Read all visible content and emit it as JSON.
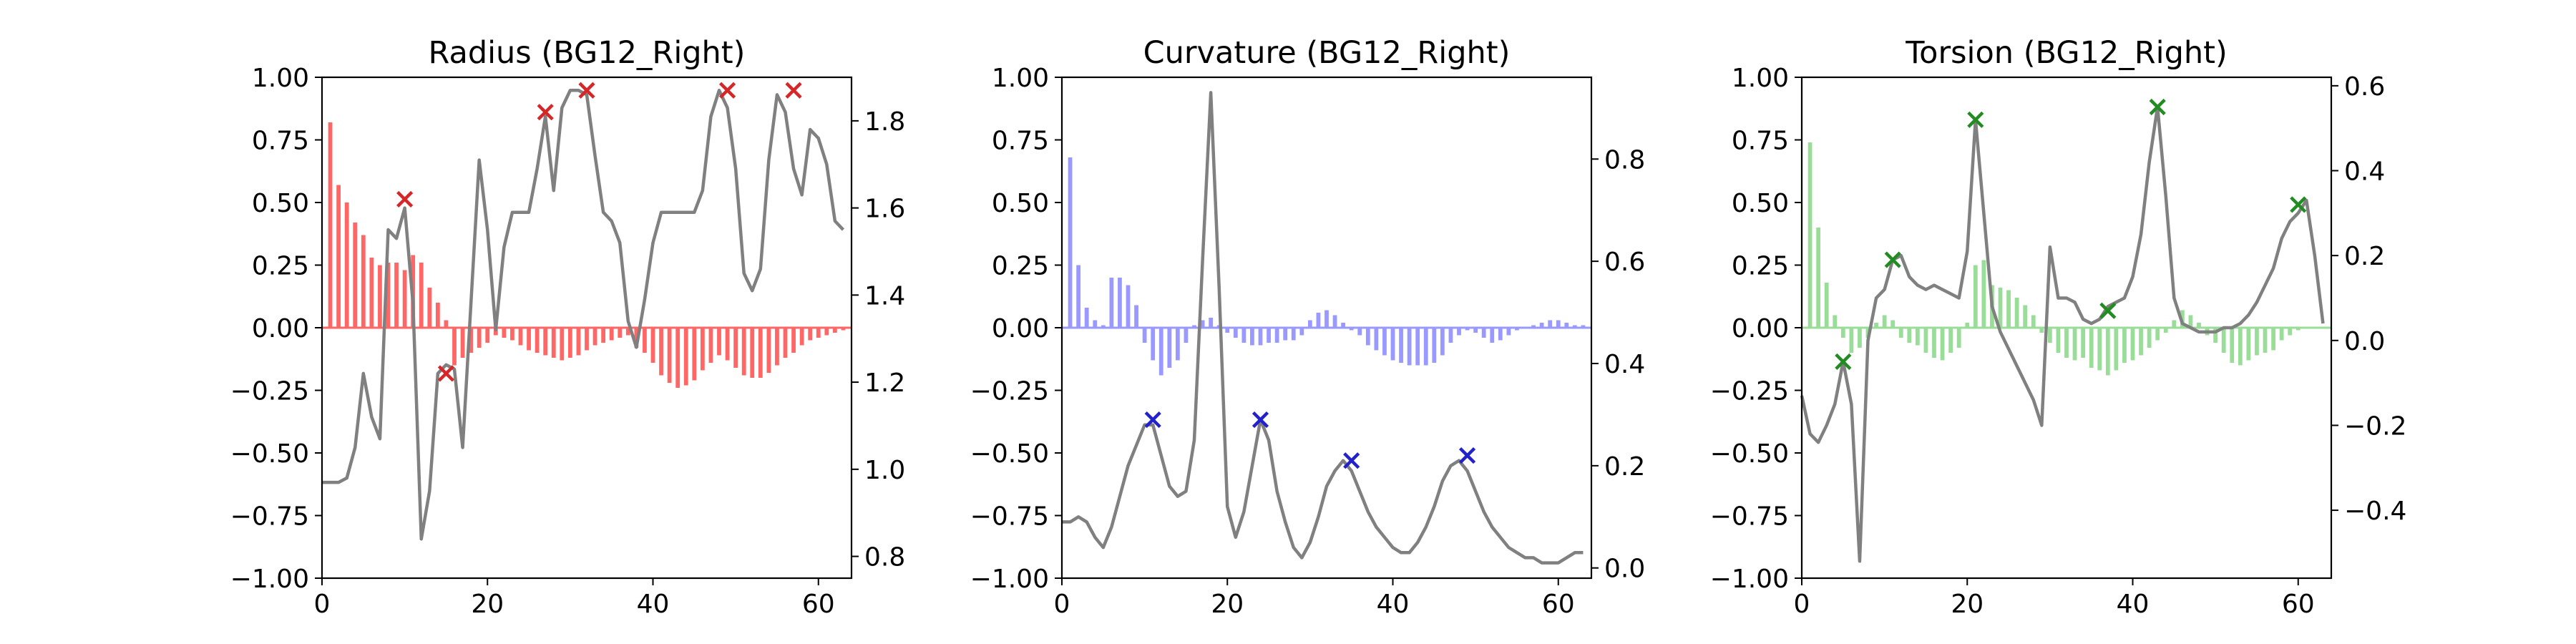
{
  "chart_data": [
    {
      "type": "bar+line",
      "title": "Radius (BG12_Right)",
      "bar_color": "#ff6666",
      "line_color": "#808080",
      "marker_color": "#d62728",
      "xlim": [
        0,
        64
      ],
      "ylim_left": [
        -1.0,
        1.0
      ],
      "ylim_right": [
        0.75,
        1.9
      ],
      "x_ticks": [
        "0",
        "20",
        "40",
        "60"
      ],
      "left_ticks": [
        "1.00",
        "0.75",
        "0.50",
        "0.25",
        "0.00",
        "−0.25",
        "−0.50",
        "−0.75",
        "−1.00"
      ],
      "right_ticks": [
        "1.8",
        "1.6",
        "1.4",
        "1.2",
        "1.0",
        "0.8"
      ],
      "bar_x": [
        1,
        2,
        3,
        4,
        5,
        6,
        7,
        8,
        9,
        10,
        11,
        12,
        13,
        14,
        15,
        16,
        17,
        18,
        19,
        20,
        21,
        22,
        23,
        24,
        25,
        26,
        27,
        28,
        29,
        30,
        31,
        32,
        33,
        34,
        35,
        36,
        37,
        38,
        39,
        40,
        41,
        42,
        43,
        44,
        45,
        46,
        47,
        48,
        49,
        50,
        51,
        52,
        53,
        54,
        55,
        56,
        57,
        58,
        59,
        60,
        61,
        62,
        63
      ],
      "bar_values": [
        0.82,
        0.57,
        0.5,
        0.42,
        0.37,
        0.28,
        0.25,
        0.26,
        0.26,
        0.23,
        0.29,
        0.26,
        0.16,
        0.1,
        0.03,
        -0.15,
        -0.12,
        -0.1,
        -0.08,
        -0.06,
        -0.03,
        -0.04,
        -0.05,
        -0.07,
        -0.09,
        -0.1,
        -0.11,
        -0.12,
        -0.13,
        -0.12,
        -0.11,
        -0.09,
        -0.07,
        -0.06,
        -0.05,
        -0.04,
        -0.03,
        -0.08,
        -0.1,
        -0.14,
        -0.19,
        -0.22,
        -0.24,
        -0.23,
        -0.21,
        -0.17,
        -0.14,
        -0.11,
        -0.13,
        -0.16,
        -0.19,
        -0.2,
        -0.2,
        -0.18,
        -0.15,
        -0.12,
        -0.1,
        -0.07,
        -0.05,
        -0.04,
        -0.03,
        -0.02,
        -0.01
      ],
      "line_x": [
        0,
        1,
        2,
        3,
        4,
        5,
        6,
        7,
        8,
        9,
        10,
        11,
        12,
        13,
        14,
        15,
        16,
        17,
        18,
        19,
        20,
        21,
        22,
        23,
        24,
        25,
        26,
        27,
        28,
        29,
        30,
        31,
        32,
        33,
        34,
        35,
        36,
        37,
        38,
        39,
        40,
        41,
        42,
        43,
        44,
        45,
        46,
        47,
        48,
        49,
        50,
        51,
        52,
        53,
        54,
        55,
        56,
        57,
        58,
        59,
        60,
        61,
        62,
        63
      ],
      "line_values": [
        0.97,
        0.97,
        0.97,
        0.98,
        1.05,
        1.22,
        1.12,
        1.07,
        1.55,
        1.53,
        1.6,
        1.38,
        0.84,
        0.95,
        1.22,
        1.24,
        1.23,
        1.05,
        1.38,
        1.71,
        1.55,
        1.32,
        1.51,
        1.59,
        1.59,
        1.59,
        1.69,
        1.81,
        1.64,
        1.83,
        1.87,
        1.87,
        1.86,
        1.72,
        1.59,
        1.57,
        1.52,
        1.34,
        1.28,
        1.39,
        1.52,
        1.59,
        1.59,
        1.59,
        1.59,
        1.59,
        1.64,
        1.81,
        1.87,
        1.83,
        1.69,
        1.45,
        1.41,
        1.46,
        1.71,
        1.86,
        1.82,
        1.69,
        1.63,
        1.78,
        1.76,
        1.7,
        1.57,
        1.55
      ],
      "marker_x": [
        10,
        15,
        27,
        32,
        49,
        57
      ],
      "marker_y": [
        1.62,
        1.22,
        1.82,
        1.87,
        1.87,
        1.87
      ]
    },
    {
      "type": "bar+line",
      "title": "Curvature (BG12_Right)",
      "bar_color": "#9999ff",
      "line_color": "#808080",
      "marker_color": "#2222cc",
      "xlim": [
        0,
        64
      ],
      "ylim_left": [
        -1.0,
        1.0
      ],
      "ylim_right": [
        -0.02,
        0.96
      ],
      "x_ticks": [
        "0",
        "20",
        "40",
        "60"
      ],
      "left_ticks": [
        "1.00",
        "0.75",
        "0.50",
        "0.25",
        "0.00",
        "−0.25",
        "−0.50",
        "−0.75",
        "−1.00"
      ],
      "right_ticks": [
        "0.8",
        "0.6",
        "0.4",
        "0.2",
        "0.0"
      ],
      "bar_x": [
        1,
        2,
        3,
        4,
        5,
        6,
        7,
        8,
        9,
        10,
        11,
        12,
        13,
        14,
        15,
        16,
        17,
        18,
        19,
        20,
        21,
        22,
        23,
        24,
        25,
        26,
        27,
        28,
        29,
        30,
        31,
        32,
        33,
        34,
        35,
        36,
        37,
        38,
        39,
        40,
        41,
        42,
        43,
        44,
        45,
        46,
        47,
        48,
        49,
        50,
        51,
        52,
        53,
        54,
        55,
        56,
        57,
        58,
        59,
        60,
        61,
        62,
        63
      ],
      "bar_values": [
        0.68,
        0.25,
        0.08,
        0.03,
        0.01,
        0.2,
        0.2,
        0.17,
        0.09,
        -0.06,
        -0.13,
        -0.19,
        -0.16,
        -0.13,
        -0.06,
        0.01,
        0.03,
        0.04,
        0.01,
        -0.02,
        -0.04,
        -0.06,
        -0.07,
        -0.07,
        -0.06,
        -0.06,
        -0.05,
        -0.05,
        -0.03,
        0.03,
        0.06,
        0.07,
        0.05,
        0.02,
        -0.01,
        -0.03,
        -0.07,
        -0.09,
        -0.11,
        -0.13,
        -0.14,
        -0.15,
        -0.15,
        -0.15,
        -0.14,
        -0.11,
        -0.06,
        -0.03,
        -0.01,
        -0.02,
        -0.04,
        -0.06,
        -0.05,
        -0.03,
        -0.01,
        0.0,
        0.01,
        0.02,
        0.03,
        0.03,
        0.02,
        0.01,
        0.01
      ],
      "line_x": [
        0,
        1,
        2,
        3,
        4,
        5,
        6,
        7,
        8,
        9,
        10,
        11,
        12,
        13,
        14,
        15,
        16,
        17,
        18,
        19,
        20,
        21,
        22,
        23,
        24,
        25,
        26,
        27,
        28,
        29,
        30,
        31,
        32,
        33,
        34,
        35,
        36,
        37,
        38,
        39,
        40,
        41,
        42,
        43,
        44,
        45,
        46,
        47,
        48,
        49,
        50,
        51,
        52,
        53,
        54,
        55,
        56,
        57,
        58,
        59,
        60,
        61,
        62,
        63
      ],
      "line_values": [
        0.09,
        0.09,
        0.1,
        0.09,
        0.06,
        0.04,
        0.08,
        0.14,
        0.2,
        0.24,
        0.28,
        0.28,
        0.22,
        0.16,
        0.14,
        0.15,
        0.25,
        0.6,
        0.93,
        0.55,
        0.12,
        0.06,
        0.11,
        0.2,
        0.29,
        0.25,
        0.15,
        0.09,
        0.04,
        0.02,
        0.05,
        0.1,
        0.16,
        0.19,
        0.21,
        0.19,
        0.15,
        0.11,
        0.08,
        0.06,
        0.04,
        0.03,
        0.03,
        0.05,
        0.08,
        0.12,
        0.17,
        0.2,
        0.21,
        0.19,
        0.15,
        0.11,
        0.08,
        0.06,
        0.04,
        0.03,
        0.02,
        0.02,
        0.01,
        0.01,
        0.01,
        0.02,
        0.03,
        0.03
      ],
      "marker_x": [
        11,
        24,
        35,
        49
      ],
      "marker_y": [
        0.29,
        0.29,
        0.21,
        0.22
      ]
    },
    {
      "type": "bar+line",
      "title": "Torsion (BG12_Right)",
      "bar_color": "#99dd99",
      "line_color": "#808080",
      "marker_color": "#228B22",
      "xlim": [
        0,
        64
      ],
      "ylim_left": [
        -1.0,
        1.0
      ],
      "ylim_right": [
        -0.56,
        0.62
      ],
      "x_ticks": [
        "0",
        "20",
        "40",
        "60"
      ],
      "left_ticks": [
        "1.00",
        "0.75",
        "0.50",
        "0.25",
        "0.00",
        "−0.25",
        "−0.50",
        "−0.75",
        "−1.00"
      ],
      "right_ticks": [
        "0.6",
        "0.4",
        "0.2",
        "0.0",
        "−0.2",
        "−0.4"
      ],
      "bar_x": [
        1,
        2,
        3,
        4,
        5,
        6,
        7,
        8,
        9,
        10,
        11,
        12,
        13,
        14,
        15,
        16,
        17,
        18,
        19,
        20,
        21,
        22,
        23,
        24,
        25,
        26,
        27,
        28,
        29,
        30,
        31,
        32,
        33,
        34,
        35,
        36,
        37,
        38,
        39,
        40,
        41,
        42,
        43,
        44,
        45,
        46,
        47,
        48,
        49,
        50,
        51,
        52,
        53,
        54,
        55,
        56,
        57,
        58,
        59,
        60,
        61,
        62,
        63
      ],
      "bar_values": [
        0.74,
        0.4,
        0.18,
        0.05,
        -0.04,
        -0.1,
        -0.08,
        -0.04,
        0.02,
        0.05,
        0.03,
        -0.04,
        -0.06,
        -0.07,
        -0.1,
        -0.12,
        -0.13,
        -0.1,
        -0.08,
        0.02,
        0.25,
        0.27,
        0.17,
        0.16,
        0.15,
        0.12,
        0.09,
        0.05,
        -0.02,
        -0.06,
        -0.1,
        -0.12,
        -0.13,
        -0.12,
        -0.16,
        -0.17,
        -0.19,
        -0.17,
        -0.14,
        -0.13,
        -0.11,
        -0.08,
        -0.05,
        -0.02,
        0.03,
        0.07,
        0.05,
        0.02,
        -0.03,
        -0.06,
        -0.1,
        -0.14,
        -0.15,
        -0.13,
        -0.11,
        -0.1,
        -0.09,
        -0.05,
        -0.03,
        -0.01,
        0.0,
        0.0,
        0.0
      ],
      "line_x": [
        0,
        1,
        2,
        3,
        4,
        5,
        6,
        7,
        8,
        9,
        10,
        11,
        12,
        13,
        14,
        15,
        16,
        17,
        18,
        19,
        20,
        21,
        22,
        23,
        24,
        25,
        26,
        27,
        28,
        29,
        30,
        31,
        32,
        33,
        34,
        35,
        36,
        37,
        38,
        39,
        40,
        41,
        42,
        43,
        44,
        45,
        46,
        47,
        48,
        49,
        50,
        51,
        52,
        53,
        54,
        55,
        56,
        57,
        58,
        59,
        60,
        61,
        62,
        63
      ],
      "line_values": [
        -0.13,
        -0.22,
        -0.24,
        -0.2,
        -0.15,
        -0.05,
        -0.15,
        -0.52,
        0.0,
        0.1,
        0.12,
        0.19,
        0.2,
        0.15,
        0.13,
        0.12,
        0.13,
        0.12,
        0.11,
        0.1,
        0.21,
        0.52,
        0.3,
        0.08,
        0.02,
        -0.02,
        -0.06,
        -0.1,
        -0.14,
        -0.2,
        0.22,
        0.1,
        0.1,
        0.09,
        0.05,
        0.04,
        0.05,
        0.08,
        0.09,
        0.1,
        0.15,
        0.25,
        0.42,
        0.55,
        0.34,
        0.1,
        0.04,
        0.03,
        0.02,
        0.02,
        0.02,
        0.03,
        0.03,
        0.04,
        0.06,
        0.09,
        0.13,
        0.17,
        0.24,
        0.28,
        0.3,
        0.33,
        0.2,
        0.04
      ],
      "marker_x": [
        5,
        11,
        21,
        37,
        43,
        60
      ],
      "marker_y": [
        -0.05,
        0.19,
        0.52,
        0.07,
        0.55,
        0.32
      ]
    }
  ]
}
